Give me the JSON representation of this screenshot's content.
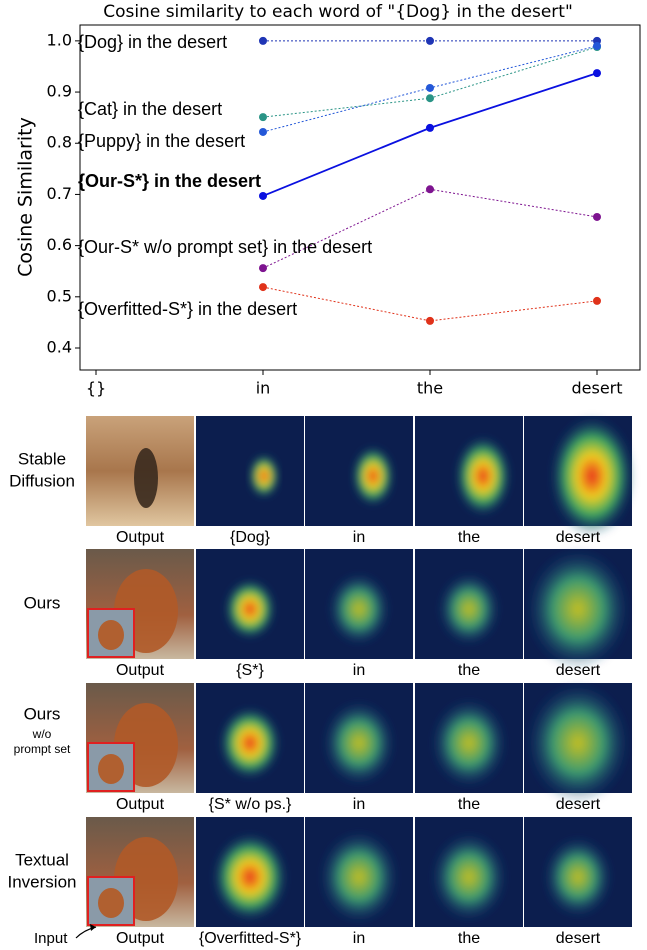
{
  "chart_data": {
    "type": "line",
    "title": "Cosine similarity to each word of \"{Dog} in the desert\"",
    "ylabel": "Cosine Similarity",
    "categories": [
      "{}",
      "in",
      "the",
      "desert"
    ],
    "ylim": [
      0.357,
      1.031
    ],
    "yticks": [
      0.4,
      0.5,
      0.6,
      0.7,
      0.8,
      0.9,
      {
        "value": 1,
        "label": "1.0"
      }
    ],
    "series": [
      {
        "name": "{Dog} in the desert",
        "color": "#1f35b5",
        "linestyle": "dotted",
        "values": [
          null,
          1.0,
          1.0,
          1.0
        ]
      },
      {
        "name": "{Cat} in the desert",
        "color": "#2a9486",
        "linestyle": "dotted",
        "values": [
          null,
          0.851,
          0.888,
          0.988
        ]
      },
      {
        "name": "{Puppy} in the desert",
        "color": "#2458d8",
        "linestyle": "dotted",
        "values": [
          null,
          0.822,
          0.908,
          0.99
        ]
      },
      {
        "name": "{Our-S*} in the desert",
        "color": "#0a10e0",
        "linestyle": "solid",
        "values": [
          null,
          0.697,
          0.83,
          0.937
        ]
      },
      {
        "name": "{Our-S* w/o prompt set} in the desert",
        "color": "#7e1490",
        "linestyle": "dotted",
        "values": [
          null,
          0.556,
          0.71,
          0.656
        ]
      },
      {
        "name": "{Overfitted-S*} in the desert",
        "color": "#e0321a",
        "linestyle": "dotted",
        "values": [
          null,
          0.519,
          0.453,
          0.492
        ]
      }
    ]
  },
  "figure": {
    "input_label": "Input",
    "rows": [
      {
        "label": [
          "Stable",
          "Diffusion"
        ],
        "captions": [
          "Output",
          "{Dog}",
          "in",
          "the",
          "desert"
        ]
      },
      {
        "label": [
          "Ours"
        ],
        "captions": [
          "Output",
          "{S*}",
          "in",
          "the",
          "desert"
        ]
      },
      {
        "label": [
          "Ours"
        ],
        "sublabel": [
          "w/o",
          "prompt set"
        ],
        "captions": [
          "Output",
          "{S* w/o ps.}",
          "in",
          "the",
          "desert"
        ]
      },
      {
        "label": [
          "Textual",
          "Inversion"
        ],
        "captions": [
          "Output",
          "{Overfitted-S*}",
          "in",
          "the",
          "desert"
        ]
      }
    ]
  }
}
